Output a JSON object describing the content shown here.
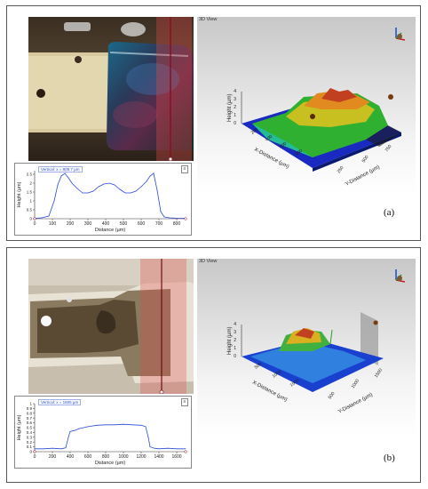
{
  "panels": [
    {
      "letter": "(a)",
      "view3d_label": "3D View",
      "profile": {
        "readout": "Vertical: x = 809.7 µm",
        "menu": "≡",
        "xlabel": "Distance (µm)",
        "ylabel": "Height (µm)",
        "xticks": [
          "0",
          "100",
          "200",
          "300",
          "400",
          "500",
          "600",
          "700",
          "800"
        ],
        "yticks": [
          "0",
          "0.5",
          "1",
          "1.5",
          "2",
          "2.5"
        ]
      },
      "view3d": {
        "height_label": "Height (µm)",
        "height_ticks": [
          "0",
          "1",
          "2",
          "3",
          "4"
        ],
        "x_label": "X-Distance (µm)",
        "x_ticks": [
          "200",
          "400",
          "600",
          "800"
        ],
        "y_label": "Y-Distance (µm)",
        "y_ticks": [
          "250",
          "500",
          "750"
        ]
      }
    },
    {
      "letter": "(b)",
      "view3d_label": "3D View",
      "profile": {
        "readout": "Vertical: x = 1605 µm",
        "menu": "≡",
        "xlabel": "Distance (µm)",
        "ylabel": "Height (µm)",
        "xticks": [
          "0",
          "200",
          "400",
          "600",
          "800",
          "1000",
          "1200",
          "1400",
          "1600"
        ],
        "yticks": [
          "0",
          "0.1",
          "0.2",
          "0.3",
          "0.4",
          "0.5",
          "0.6",
          "0.7",
          "0.8",
          "0.9",
          "1"
        ]
      },
      "view3d": {
        "height_label": "Height (µm)",
        "height_ticks": [
          "0",
          "1",
          "2",
          "3",
          "4"
        ],
        "x_label": "X-Distance (µm)",
        "x_ticks": [
          "500",
          "1000",
          "1500"
        ],
        "y_label": "Y-Distance (µm)",
        "y_ticks": [
          "500",
          "1000",
          "1500"
        ]
      }
    }
  ],
  "chart_data": [
    {
      "type": "line",
      "xlabel": "Distance (µm)",
      "ylabel": "Height (µm)",
      "xlim": [
        0,
        850
      ],
      "ylim": [
        0,
        2.7
      ],
      "series": [
        {
          "x": [
            0,
            40,
            80,
            110,
            130,
            150,
            170,
            190,
            210,
            240,
            270,
            300,
            330,
            360,
            390,
            420,
            450,
            480,
            510,
            540,
            570,
            600,
            630,
            650,
            670,
            690,
            710,
            730,
            760,
            800,
            850
          ],
          "values": [
            0.02,
            0.05,
            0.15,
            1.0,
            1.9,
            2.4,
            2.55,
            2.3,
            2.0,
            1.7,
            1.45,
            1.45,
            1.55,
            1.8,
            1.95,
            2.0,
            1.9,
            1.65,
            1.45,
            1.45,
            1.55,
            1.8,
            2.1,
            2.4,
            2.55,
            1.6,
            0.4,
            0.1,
            0.05,
            0.03,
            0.02
          ]
        }
      ]
    },
    {
      "type": "line",
      "xlabel": "Distance (µm)",
      "ylabel": "Height (µm)",
      "xlim": [
        0,
        1700
      ],
      "ylim": [
        0,
        1.0
      ],
      "series": [
        {
          "x": [
            0,
            100,
            200,
            300,
            350,
            380,
            400,
            450,
            500,
            600,
            700,
            800,
            900,
            1000,
            1100,
            1200,
            1250,
            1280,
            1300,
            1350,
            1400,
            1500,
            1600,
            1700
          ],
          "values": [
            0.06,
            0.06,
            0.07,
            0.06,
            0.08,
            0.3,
            0.42,
            0.44,
            0.48,
            0.52,
            0.55,
            0.56,
            0.56,
            0.57,
            0.56,
            0.55,
            0.52,
            0.3,
            0.1,
            0.07,
            0.06,
            0.07,
            0.06,
            0.06
          ]
        }
      ]
    }
  ]
}
